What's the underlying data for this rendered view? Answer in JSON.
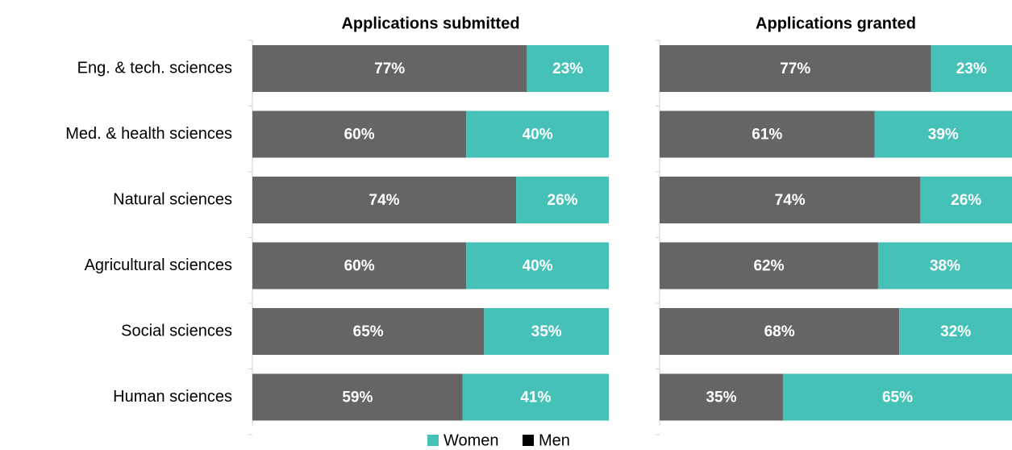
{
  "chart_data": [
    {
      "type": "bar",
      "orientation": "horizontal",
      "stacked": true,
      "title": "Applications submitted",
      "categories": [
        "Eng. & tech. sciences",
        "Med. & health sciences",
        "Natural sciences",
        "Agricultural sciences",
        "Social sciences",
        "Human sciences"
      ],
      "xlim": [
        0,
        100
      ],
      "series": [
        {
          "name": "Men",
          "color": "#666465",
          "values": [
            77,
            60,
            74,
            60,
            65,
            59
          ],
          "value_labels": [
            "77%",
            "60%",
            "74%",
            "60%",
            "65%",
            "59%"
          ]
        },
        {
          "name": "Women",
          "color": "#45c1b8",
          "values": [
            23,
            40,
            26,
            40,
            35,
            41
          ],
          "value_labels": [
            "23%",
            "40%",
            "26%",
            "40%",
            "35%",
            "41%"
          ]
        }
      ]
    },
    {
      "type": "bar",
      "orientation": "horizontal",
      "stacked": true,
      "title": "Applications granted",
      "xlim": [
        0,
        100
      ],
      "series": [
        {
          "color": "#666465",
          "values": [
            77,
            61,
            74,
            62,
            68,
            35
          ],
          "value_labels": [
            "77%",
            "61%",
            "74%",
            "62%",
            "68%",
            "35%"
          ]
        },
        {
          "color": "#45c1b8",
          "values": [
            23,
            39,
            26,
            38,
            32,
            65
          ],
          "value_labels": [
            "23%",
            "39%",
            "26%",
            "38%",
            "32%",
            "65%"
          ]
        }
      ]
    }
  ]
}
